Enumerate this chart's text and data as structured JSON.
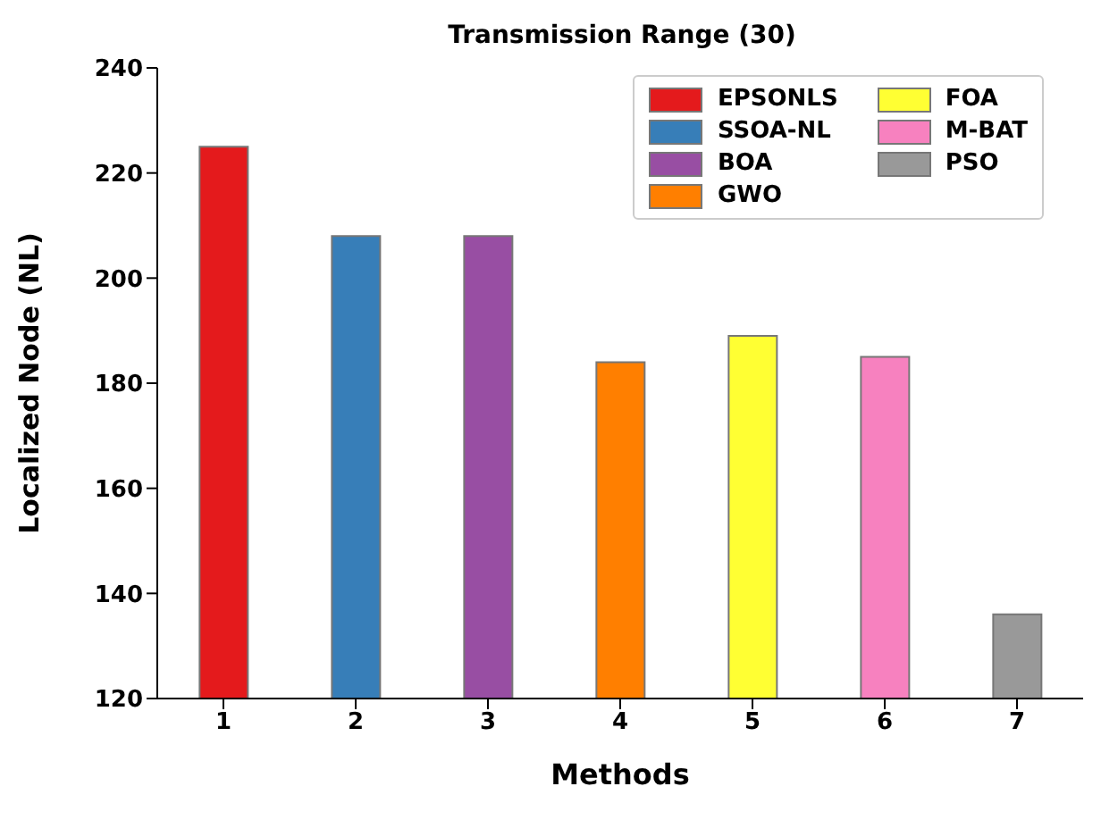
{
  "chart_data": {
    "type": "bar",
    "title": "Transmission Range (30)",
    "xlabel": "Methods",
    "ylabel": "Localized Node (NL)",
    "categories": [
      "1",
      "2",
      "3",
      "4",
      "5",
      "6",
      "7"
    ],
    "series": [
      {
        "name": "EPSONLS",
        "color": "#e41a1c",
        "values": [
          225,
          null,
          null,
          null,
          null,
          null,
          null
        ]
      },
      {
        "name": "SSOA-NL",
        "color": "#377eb8",
        "values": [
          null,
          208,
          null,
          null,
          null,
          null,
          null
        ]
      },
      {
        "name": "BOA",
        "color": "#984ea3",
        "values": [
          null,
          null,
          208,
          null,
          null,
          null,
          null
        ]
      },
      {
        "name": "GWO",
        "color": "#ff7f00",
        "values": [
          null,
          null,
          null,
          184,
          null,
          null,
          null
        ]
      },
      {
        "name": "FOA",
        "color": "#ffff33",
        "values": [
          null,
          null,
          null,
          null,
          189,
          null,
          null
        ]
      },
      {
        "name": "M-BAT",
        "color": "#f781bf",
        "values": [
          null,
          null,
          null,
          null,
          null,
          185,
          null
        ]
      },
      {
        "name": "PSO",
        "color": "#999999",
        "values": [
          null,
          null,
          null,
          null,
          null,
          null,
          136
        ]
      }
    ],
    "ylim": [
      120,
      240
    ],
    "yticks": [
      120,
      140,
      160,
      180,
      200,
      220,
      240
    ],
    "legend": "top right"
  }
}
